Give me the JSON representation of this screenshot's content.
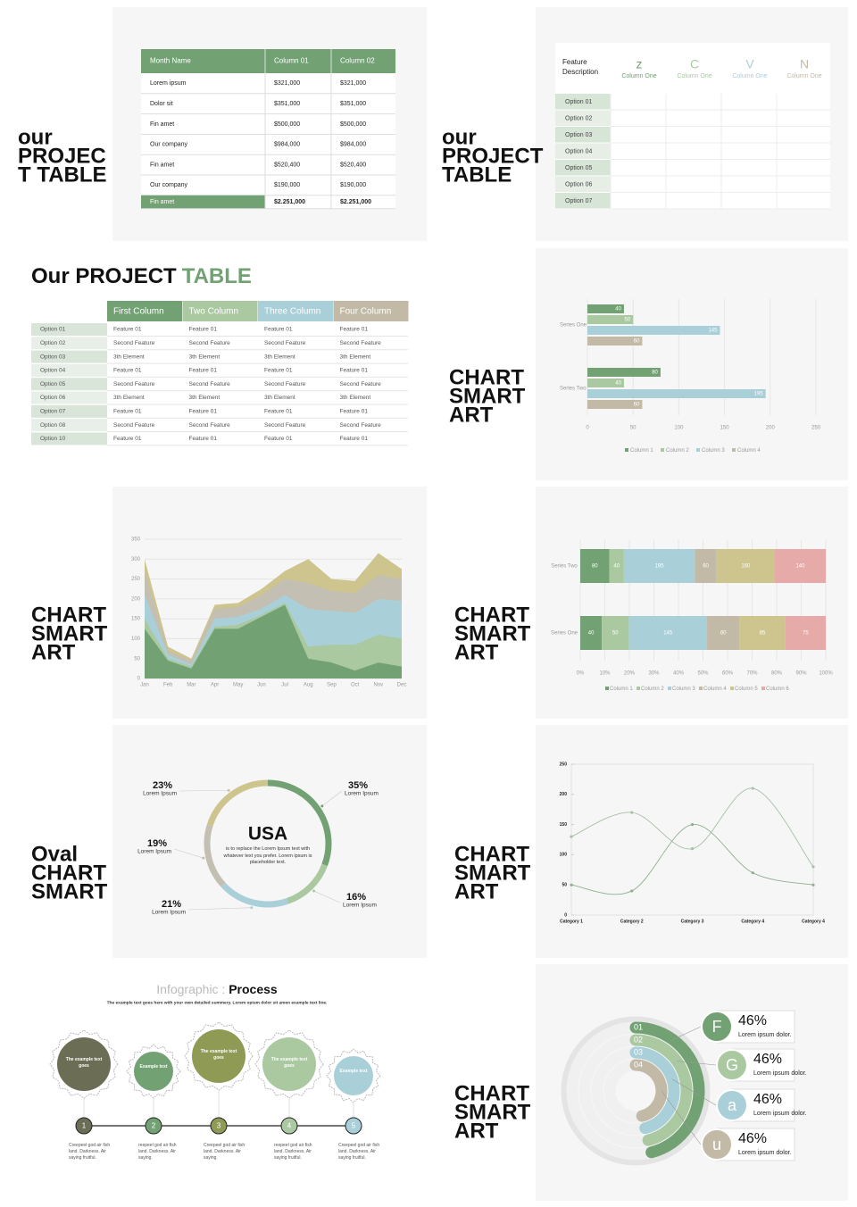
{
  "slide1": {
    "heading": [
      "our",
      "PROJEC",
      "T TABLE"
    ],
    "table": {
      "header": [
        "Month Name",
        "Column 01",
        "Column 02"
      ],
      "rows": [
        [
          "Lorem ipsum",
          "$321,000",
          "$321,000"
        ],
        [
          "Dolor sit",
          "$351,000",
          "$351,000"
        ],
        [
          "Fin amet",
          "$500,000",
          "$500,000"
        ],
        [
          "Our company",
          "$984,000",
          "$984,000"
        ],
        [
          "Fin amet",
          "$520,400",
          "$520,400"
        ],
        [
          "Our company",
          "$190,000",
          "$190,000"
        ],
        [
          "Fin amet",
          "$2.251,000",
          "$2.251,000"
        ]
      ]
    }
  },
  "slide2": {
    "heading": [
      "our",
      "PROJECT",
      "TABLE"
    ],
    "table": {
      "corner": "Feature Description",
      "columns": [
        {
          "letter": "z",
          "label": "Column One"
        },
        {
          "letter": "C",
          "label": "Column One"
        },
        {
          "letter": "V",
          "label": "Column One"
        },
        {
          "letter": "N",
          "label": "Column One"
        }
      ],
      "rows": [
        "Option 01",
        "Option 02",
        "Option 03",
        "Option 04",
        "Option 05",
        "Option 06",
        "Option 07"
      ]
    }
  },
  "slide3": {
    "title": [
      "Our PROJECT",
      "TABLE"
    ],
    "table": {
      "columns": [
        "First Column",
        "Two Column",
        "Three Column",
        "Four Column"
      ],
      "rows": [
        {
          "label": "Option 01",
          "cells": [
            "Feature 01",
            "Feature 01",
            "Feature 01",
            "Feature 01"
          ]
        },
        {
          "label": "Option 02",
          "cells": [
            "Second Feature",
            "Second Feature",
            "Second Feature",
            "Second Feature"
          ]
        },
        {
          "label": "Option 03",
          "cells": [
            "3th Element",
            "3th Element",
            "3th Element",
            "3th Element"
          ]
        },
        {
          "label": "Option 04",
          "cells": [
            "Feature 01",
            "Feature 01",
            "Feature 01",
            "Feature 01"
          ]
        },
        {
          "label": "Option 05",
          "cells": [
            "Second Feature",
            "Second Feature",
            "Second Feature",
            "Second Feature"
          ]
        },
        {
          "label": "Option 06",
          "cells": [
            "3th Element",
            "3th Element",
            "3th Element",
            "3th Element"
          ]
        },
        {
          "label": "Option 07",
          "cells": [
            "Feature 01",
            "Feature 01",
            "Feature 01",
            "Feature 01"
          ]
        },
        {
          "label": "Option 08",
          "cells": [
            "Second Feature",
            "Second Feature",
            "Second Feature",
            "Second Feature"
          ]
        },
        {
          "label": "Option 10",
          "cells": [
            "Feature 01",
            "Feature 01",
            "Feature 01",
            "Feature 01"
          ]
        }
      ]
    }
  },
  "slide4": {
    "heading": [
      "CHART",
      "SMART",
      "ART"
    ],
    "chart": {
      "type": "bar",
      "orientation": "horizontal",
      "categories": [
        "Series One",
        "Series Two"
      ],
      "series": [
        {
          "name": "Column 1",
          "color": "#72a273",
          "values": [
            40,
            80
          ]
        },
        {
          "name": "Column 2",
          "color": "#aac9a1",
          "values": [
            50,
            40
          ]
        },
        {
          "name": "Column 3",
          "color": "#a9cfd8",
          "values": [
            145,
            195
          ]
        },
        {
          "name": "Column 4",
          "color": "#c2baa6",
          "values": [
            60,
            60
          ]
        }
      ],
      "xlim": [
        0,
        250
      ],
      "xticks": [
        0,
        50,
        100,
        150,
        200,
        250
      ]
    }
  },
  "slide5": {
    "heading": [
      "CHART",
      "SMART",
      "ART"
    ],
    "chart": {
      "type": "area",
      "categories": [
        "Jan",
        "Feb",
        "Mar",
        "Apr",
        "May",
        "Jun",
        "Jul",
        "Aug",
        "Sep",
        "Oct",
        "Nov",
        "Dec"
      ],
      "series": [
        {
          "color": "#cdc48e",
          "values": [
            300,
            80,
            50,
            185,
            190,
            225,
            270,
            300,
            250,
            245,
            315,
            275
          ]
        },
        {
          "color": "#c4bfb3",
          "values": [
            270,
            70,
            45,
            175,
            180,
            210,
            250,
            240,
            220,
            215,
            260,
            250
          ]
        },
        {
          "color": "#a9cfd8",
          "values": [
            210,
            60,
            35,
            150,
            155,
            175,
            210,
            175,
            170,
            165,
            200,
            195
          ]
        },
        {
          "color": "#aac9a1",
          "values": [
            150,
            50,
            30,
            130,
            135,
            160,
            190,
            80,
            85,
            85,
            110,
            100
          ]
        },
        {
          "color": "#72a273",
          "values": [
            125,
            45,
            25,
            125,
            125,
            155,
            185,
            50,
            40,
            20,
            40,
            30
          ]
        }
      ],
      "ylim": [
        0,
        350
      ],
      "yticks": [
        0,
        50,
        100,
        150,
        200,
        250,
        300,
        350
      ]
    }
  },
  "slide6": {
    "heading": [
      "CHART",
      "SMART",
      "ART"
    ],
    "chart": {
      "type": "bar",
      "stacked": "percent",
      "categories": [
        "Series Two",
        "Series One"
      ],
      "series": [
        {
          "name": "Column 1",
          "color": "#72a273",
          "values": [
            80,
            40
          ]
        },
        {
          "name": "Column 2",
          "color": "#aac9a1",
          "values": [
            40,
            50
          ]
        },
        {
          "name": "Column 3",
          "color": "#a9cfd8",
          "values": [
            195,
            145
          ]
        },
        {
          "name": "Column 4",
          "color": "#c2baa6",
          "values": [
            60,
            60
          ]
        },
        {
          "name": "Column 5",
          "color": "#cdc48e",
          "values": [
            160,
            85
          ]
        },
        {
          "name": "Column 6",
          "color": "#e6aaa8",
          "values": [
            140,
            75
          ]
        }
      ],
      "xlim": [
        0,
        100
      ],
      "xticks": [
        {
          "value": 0,
          "label": "0%"
        },
        {
          "value": 10,
          "label": "10%"
        },
        {
          "value": 20,
          "label": "20%"
        },
        {
          "value": 30,
          "label": "30%"
        },
        {
          "value": 40,
          "label": "40%"
        },
        {
          "value": 50,
          "label": "50%"
        },
        {
          "value": 60,
          "label": "60%"
        },
        {
          "value": 70,
          "label": "70%"
        },
        {
          "value": 80,
          "label": "80%"
        },
        {
          "value": 90,
          "label": "90%"
        },
        {
          "value": 100,
          "label": "100%"
        }
      ]
    }
  },
  "slide7": {
    "heading": [
      "Oval",
      "CHART",
      "SMART"
    ],
    "chart": {
      "type": "donut",
      "center_title": "USA",
      "center_text": "is to replace the Lorem Ipsum text with whatever text you prefer. Lorem ipsum is placeholder text.",
      "values": [
        35,
        16,
        21,
        19,
        23
      ],
      "value_labels": [
        "35%",
        "16%",
        "21%",
        "19%",
        "23%"
      ],
      "captions": [
        "Lorem Ipsum",
        "Lorem Ipsum",
        "Lorem Ipsum",
        "Lorem Ipsum",
        "Lorem Ipsum"
      ],
      "colors": [
        "#72a273",
        "#aac9a1",
        "#a9cfd8",
        "#c4bfb3",
        "#cdc48e"
      ]
    }
  },
  "slide8": {
    "heading": [
      "CHART",
      "SMART",
      "ART"
    ],
    "chart": {
      "type": "line",
      "categories": [
        "Category 1",
        "Category 2",
        "Category 3",
        "Category 4",
        "Category 4"
      ],
      "series": [
        {
          "color": "#a8bfa8",
          "values": [
            130,
            170,
            110,
            210,
            80
          ]
        },
        {
          "color": "#8fb08f",
          "values": [
            50,
            40,
            150,
            70,
            50
          ]
        }
      ],
      "ylim": [
        0,
        250
      ],
      "yticks": [
        0,
        50,
        100,
        150,
        200,
        250
      ]
    }
  },
  "slide9": {
    "title": [
      "Infographic : ",
      "Process"
    ],
    "subtitle": "The example text goes here with your own detailed summery. Lorem opium dolor sit amen example text line.",
    "steps": [
      {
        "gear_text": "The example text goes",
        "number": "1",
        "caption": "Creepeel god air fish land. Darkness. Air saying fruitful.",
        "color": "#6b6e55"
      },
      {
        "gear_text": "Example text",
        "number": "2",
        "caption": "reepeel god air fish land. Darkness. Air saying.",
        "color": "#72a273"
      },
      {
        "gear_text": "The example text goes",
        "number": "3",
        "caption": "Creepeel god air fish land. Darkness. Air saying.",
        "color": "#8f9a55"
      },
      {
        "gear_text": "The example text goes",
        "number": "4",
        "caption": "reepeel god air fish land. Darkness. Air saying fruitful.",
        "color": "#aac9a1"
      },
      {
        "gear_text": "Example text",
        "number": "5",
        "caption": "Creepeel god air fish land. Darkness. Air saying fruitful.",
        "color": "#a9cfd8"
      }
    ]
  },
  "slide10": {
    "heading": [
      "CHART",
      "SMART",
      "ART"
    ],
    "chart": {
      "type": "rings",
      "items": [
        {
          "number": "01",
          "letter": "F",
          "value": 46,
          "value_label": "46%",
          "caption": "Lorem ipsum dolor.",
          "color": "#72a273"
        },
        {
          "number": "02",
          "letter": "G",
          "value": 46,
          "value_label": "46%",
          "caption": "Lorem ipsum dolor.",
          "color": "#aac9a1"
        },
        {
          "number": "03",
          "letter": "a",
          "value": 46,
          "value_label": "46%",
          "caption": "Lorem ipsum dolor.",
          "color": "#a9cfd8"
        },
        {
          "number": "04",
          "letter": "u",
          "value": 46,
          "value_label": "46%",
          "caption": "Lorem ipsum dolor.",
          "color": "#c2baa6"
        }
      ]
    }
  }
}
